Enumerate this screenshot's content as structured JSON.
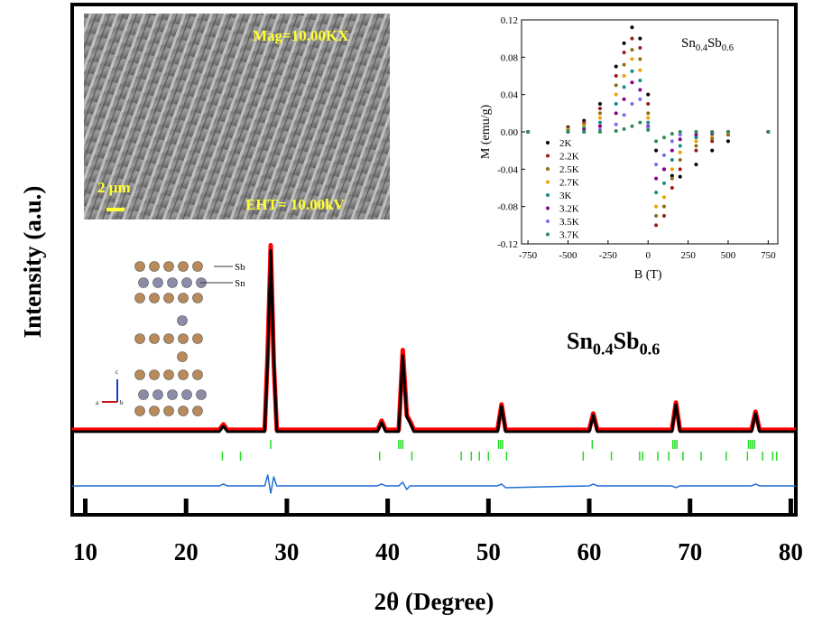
{
  "chart_data": [
    {
      "type": "line",
      "xlabel": "2θ (Degree)",
      "ylabel": "Intensity (a.u.)",
      "formula": [
        "Sn",
        "0.4",
        "Sb",
        "0.6"
      ],
      "annotations": [
        "Mag=10.00KX",
        "2 μm",
        "EHT= 10.00kV",
        "Sb",
        "Sn",
        "c",
        "a",
        "b"
      ],
      "xlim": [
        8.7,
        80.5
      ],
      "ylim": [
        -46,
        236
      ],
      "xticks": [
        10,
        20,
        30,
        40,
        50,
        60,
        70,
        80
      ],
      "x": [
        8.7,
        23.3,
        23.7,
        24.1,
        27.8,
        28.1,
        28.4,
        28.7,
        29,
        39,
        39.4,
        39.8,
        41.1,
        41.5,
        41.9,
        42.2,
        42.6,
        50.9,
        51.3,
        51.7,
        60,
        60.4,
        60.8,
        68.2,
        68.6,
        69,
        76.1,
        76.5,
        76.9,
        80.5
      ],
      "series": [
        {
          "color": "#ff0000",
          "values": [
            1,
            1,
            4,
            1,
            1,
            44,
            103,
            38,
            1,
            1,
            6,
            1,
            1,
            45,
            9,
            6,
            1,
            1,
            15,
            1,
            1,
            10,
            1,
            1,
            16,
            1,
            1,
            11,
            1,
            1
          ]
        },
        {
          "color": "#000000",
          "values": [
            0,
            0,
            3,
            0,
            0,
            40,
            100,
            40,
            0,
            0,
            5,
            0,
            0,
            42,
            8,
            5,
            0,
            0,
            14,
            0,
            0,
            9,
            0,
            0,
            15,
            0,
            0,
            10,
            0,
            0
          ]
        },
        {
          "color": "#1f6fd6",
          "values": [
            -30,
            -30,
            -29,
            -30,
            -30,
            -24,
            -34,
            -25,
            -30,
            -30,
            -29,
            -30,
            -30,
            -28,
            -32,
            -30,
            -30,
            -30,
            -29,
            -31,
            -30,
            -29,
            -30,
            -30,
            -31,
            -30,
            -30,
            -29,
            -30,
            -30
          ]
        }
      ],
      "bragg_color": "#22dd22",
      "bragg_positions": [
        [
          28.4,
          41.1,
          41.3,
          41.5,
          51.0,
          51.2,
          51.4,
          60.3,
          68.3,
          68.5,
          68.7,
          75.8,
          76,
          76.2,
          76.4
        ],
        [
          23.6,
          25.4,
          39.2,
          42.4,
          47.3,
          48.3,
          49.1,
          50,
          51.8,
          59.4,
          62.2,
          65,
          65.3,
          66.8,
          67.9,
          69.3,
          71.1,
          73.6,
          75.7,
          77.2,
          78.2,
          78.6
        ]
      ]
    },
    {
      "type": "scatter",
      "xlabel": "B (T)",
      "ylabel": "M (emu/g)",
      "formula": [
        "Sn",
        "0.4",
        "Sb",
        "0.6"
      ],
      "xlim": [
        -790,
        810
      ],
      "ylim": [
        -0.12,
        0.12
      ],
      "xticks": [
        -750,
        -500,
        -250,
        0,
        250,
        500,
        750
      ],
      "yticks": [
        0.12,
        0.08,
        0.04,
        {
          "value": 0,
          "label": "0.00"
        },
        -0.04,
        -0.08,
        -0.12
      ],
      "x": [
        -750,
        -500,
        -400,
        -300,
        -200,
        -150,
        -100,
        -50,
        0,
        50,
        100,
        150,
        200,
        300,
        400,
        500,
        750
      ],
      "series": [
        {
          "name": "2K",
          "color": "#000000",
          "values": [
            0,
            0.005,
            0.012,
            0.03,
            0.07,
            0.095,
            0.112,
            0.1,
            0.04,
            -0.02,
            -0.04,
            -0.047,
            -0.048,
            -0.035,
            -0.02,
            -0.01,
            0
          ]
        },
        {
          "name": "2.2K",
          "color": "#9b1c1c",
          "values": [
            0,
            0.004,
            0.01,
            0.025,
            0.06,
            0.085,
            0.1,
            0.09,
            0.03,
            -0.1,
            -0.09,
            -0.06,
            -0.04,
            -0.02,
            -0.01,
            -0.003,
            0
          ]
        },
        {
          "name": "2.5K",
          "color": "#8b6f14",
          "values": [
            0,
            0.003,
            0.008,
            0.02,
            0.05,
            0.072,
            0.088,
            0.078,
            0.02,
            -0.09,
            -0.08,
            -0.05,
            -0.03,
            -0.015,
            -0.007,
            -0.002,
            0
          ]
        },
        {
          "name": "2.7K",
          "color": "#f0a000",
          "values": [
            0,
            0.002,
            0.006,
            0.015,
            0.04,
            0.06,
            0.078,
            0.066,
            0.015,
            -0.08,
            -0.07,
            -0.04,
            -0.022,
            -0.01,
            -0.004,
            -0.001,
            0
          ]
        },
        {
          "name": "3K",
          "color": "#148c8c",
          "values": [
            0,
            0.001,
            0.004,
            0.01,
            0.03,
            0.048,
            0.065,
            0.055,
            0.01,
            -0.065,
            -0.055,
            -0.03,
            -0.015,
            -0.006,
            -0.002,
            0,
            0
          ]
        },
        {
          "name": "3.2K",
          "color": "#8b008b",
          "values": [
            0,
            0,
            0.002,
            0.006,
            0.02,
            0.035,
            0.053,
            0.045,
            0.006,
            -0.05,
            -0.04,
            -0.02,
            -0.008,
            -0.003,
            -0.001,
            0,
            0
          ]
        },
        {
          "name": "3.5K",
          "color": "#7b6cf0",
          "values": [
            0,
            0,
            0,
            0.002,
            0.008,
            0.018,
            0.03,
            0.035,
            0.005,
            -0.035,
            -0.025,
            -0.01,
            -0.003,
            0,
            0,
            0,
            0
          ]
        },
        {
          "name": "3.7K",
          "color": "#2e8b57",
          "values": [
            0,
            0,
            0,
            0,
            0.001,
            0.003,
            0.006,
            0.01,
            0.002,
            -0.01,
            -0.006,
            -0.002,
            0,
            0,
            0,
            0,
            0
          ]
        }
      ]
    }
  ]
}
